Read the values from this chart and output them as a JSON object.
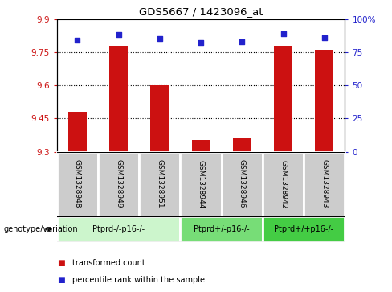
{
  "title": "GDS5667 / 1423096_at",
  "samples": [
    "GSM1328948",
    "GSM1328949",
    "GSM1328951",
    "GSM1328944",
    "GSM1328946",
    "GSM1328942",
    "GSM1328943"
  ],
  "bar_values": [
    9.48,
    9.78,
    9.6,
    9.355,
    9.365,
    9.78,
    9.76
  ],
  "dot_values": [
    84,
    88,
    85,
    82,
    83,
    89,
    86
  ],
  "bar_base": 9.3,
  "ylim_left": [
    9.3,
    9.9
  ],
  "ylim_right": [
    0,
    100
  ],
  "yticks_left": [
    9.3,
    9.45,
    9.6,
    9.75,
    9.9
  ],
  "yticks_right": [
    0,
    25,
    50,
    75,
    100
  ],
  "ytick_labels_left": [
    "9.3",
    "9.45",
    "9.6",
    "9.75",
    "9.9"
  ],
  "ytick_labels_right": [
    "0",
    "25",
    "50",
    "75",
    "100%"
  ],
  "bar_color": "#cc1111",
  "dot_color": "#2222cc",
  "groups": [
    {
      "label": "Ptprd-/-p16-/-",
      "indices": [
        0,
        1,
        2
      ],
      "color": "#ccf5cc"
    },
    {
      "label": "Ptprd+/-p16-/-",
      "indices": [
        3,
        4
      ],
      "color": "#77dd77"
    },
    {
      "label": "Ptprd+/+p16-/-",
      "indices": [
        5,
        6
      ],
      "color": "#44cc44"
    }
  ],
  "genotype_label": "genotype/variation",
  "legend_bar_label": "transformed count",
  "legend_dot_label": "percentile rank within the sample",
  "bar_width": 0.45,
  "gsm_cell_color": "#cccccc",
  "gsm_cell_edge": "#ffffff",
  "grid_yticks": [
    9.45,
    9.6,
    9.75
  ]
}
